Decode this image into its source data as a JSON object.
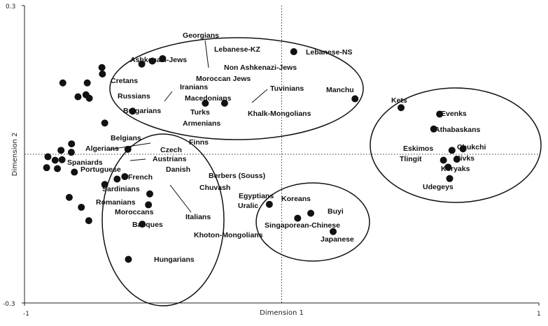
{
  "chart_data": {
    "type": "scatter",
    "title": "",
    "xlabel": "Dimension 1",
    "ylabel": "Dimension 2",
    "xlim": [
      -1,
      1
    ],
    "ylim": [
      -0.3,
      0.3
    ],
    "x_tick_labels": [
      "-1",
      "1"
    ],
    "y_tick_labels": [
      "0.3",
      "-0.3"
    ],
    "reference_lines": {
      "x": 0,
      "y": 0,
      "style": "dotted"
    },
    "grid": false,
    "legend": "none",
    "marker_color": "#111111",
    "points": [
      {
        "name": "Georgians",
        "x": -0.544,
        "y": 0.182
      },
      {
        "name": "Lebanese-KZ",
        "x": -0.463,
        "y": 0.193
      },
      {
        "name": "Non Ashkenazi-Jews",
        "x": -0.503,
        "y": 0.188
      },
      {
        "name": "Lebanese-NS",
        "x": 0.047,
        "y": 0.207
      },
      {
        "name": "Ashkenazi-Jews",
        "x": -0.699,
        "y": 0.175
      },
      {
        "name": "Moroccan Jews",
        "x": -0.697,
        "y": 0.162
      },
      {
        "name": "Cretans",
        "x": -0.851,
        "y": 0.144
      },
      {
        "name": "Iranians",
        "x": -0.756,
        "y": 0.144
      },
      {
        "name": "Russians",
        "x": -0.761,
        "y": 0.12
      },
      {
        "name": "Macedonians",
        "x": -0.748,
        "y": 0.113
      },
      {
        "name": "Bulgarians",
        "x": -0.792,
        "y": 0.116
      },
      {
        "name": "Tuvinians",
        "x": -0.222,
        "y": 0.103
      },
      {
        "name": "Khalk-Mongolians",
        "x": -0.297,
        "y": 0.103
      },
      {
        "name": "Manchu",
        "x": 0.285,
        "y": 0.112
      },
      {
        "name": "Turks",
        "x": -0.58,
        "y": 0.087
      },
      {
        "name": "Armenians",
        "x": -0.688,
        "y": 0.063
      },
      {
        "name": "Kets",
        "x": 0.464,
        "y": 0.094
      },
      {
        "name": "Evenks",
        "x": 0.614,
        "y": 0.081
      },
      {
        "name": "Athabaskans",
        "x": 0.591,
        "y": 0.051
      },
      {
        "name": "Eskimos",
        "x": 0.662,
        "y": 0.008
      },
      {
        "name": "Chukchi",
        "x": 0.705,
        "y": 0.011
      },
      {
        "name": "Tlingit",
        "x": 0.629,
        "y": -0.012
      },
      {
        "name": "Nivks",
        "x": 0.681,
        "y": -0.01
      },
      {
        "name": "Koryaks",
        "x": 0.647,
        "y": -0.026
      },
      {
        "name": "Udegeys",
        "x": 0.653,
        "y": -0.049
      },
      {
        "name": "Belgians",
        "x": -0.817,
        "y": 0.021
      },
      {
        "name": "Finns",
        "x": -0.598,
        "y": 0.01
      },
      {
        "name": "Algerians",
        "x": -0.818,
        "y": 0.004
      },
      {
        "name": "Czech",
        "x": -0.858,
        "y": 0.008
      },
      {
        "name": "Austrians",
        "x": -0.854,
        "y": -0.011
      },
      {
        "name": "Spaniards",
        "x": -0.881,
        "y": -0.012
      },
      {
        "name": "Portuguese",
        "x": -0.914,
        "y": -0.027
      },
      {
        "name": "French",
        "x": -0.872,
        "y": -0.029
      },
      {
        "name": "Danish",
        "x": -0.909,
        "y": -0.005
      },
      {
        "name": "Berbers (Souss)",
        "x": -0.61,
        "y": -0.045
      },
      {
        "name": "Chuvash",
        "x": -0.64,
        "y": -0.05
      },
      {
        "name": "Sardinians",
        "x": -0.806,
        "y": -0.036
      },
      {
        "name": "Egyptians",
        "x": -0.513,
        "y": -0.08
      },
      {
        "name": "Italians",
        "x": -0.688,
        "y": -0.061
      },
      {
        "name": "Uralic",
        "x": -0.518,
        "y": -0.102
      },
      {
        "name": "Romanians",
        "x": -0.826,
        "y": -0.087
      },
      {
        "name": "Moroccans",
        "x": -0.779,
        "y": -0.107
      },
      {
        "name": "Basques",
        "x": -0.75,
        "y": -0.134
      },
      {
        "name": "Khoton-Mongolians",
        "x": -0.542,
        "y": -0.141
      },
      {
        "name": "Hungarians",
        "x": -0.596,
        "y": -0.212
      },
      {
        "name": "Koreans",
        "x": -0.048,
        "y": -0.101
      },
      {
        "name": "Buyi",
        "x": 0.113,
        "y": -0.119
      },
      {
        "name": "Singaporean-Chinese",
        "x": 0.062,
        "y": -0.129
      },
      {
        "name": "Japanese",
        "x": 0.2,
        "y": -0.156
      }
    ]
  }
}
